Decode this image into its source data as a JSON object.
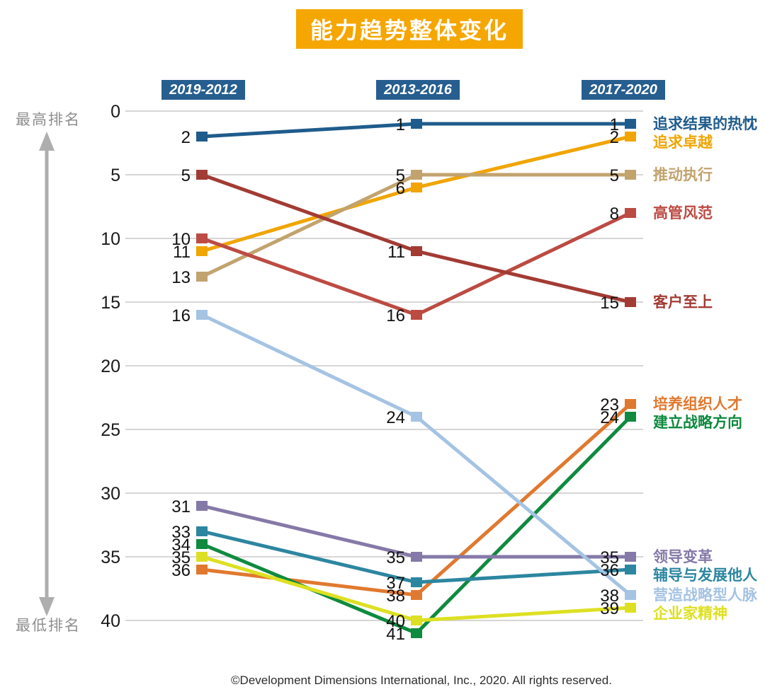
{
  "title": "能力趋势整体变化",
  "y_axis": {
    "top_label": "最高排名",
    "bottom_label": "最低排名"
  },
  "footer": "©Development Dimensions International, Inc., 2020. All rights reserved.",
  "colors": {
    "title_bg": "#F5A600",
    "title_text": "#FFFFFF",
    "header_bg": "#265E8F",
    "header_text": "#FFFFFF",
    "axis_side_label": "#8E8E8E",
    "grid": "#C9C9C9",
    "tick_text": "#1A1A1A",
    "value_text": "#111111",
    "arrow": "#AEAEAE"
  },
  "chart_data": {
    "type": "line",
    "title": "能力趋势整体变化",
    "categories": [
      "2019-2012",
      "2013-2016",
      "2017-2020"
    ],
    "y_axis_inverted": true,
    "ylim": [
      0,
      41
    ],
    "yticks": [
      0,
      5,
      10,
      15,
      20,
      25,
      30,
      35,
      40
    ],
    "grid": true,
    "legend_position": "right",
    "series": [
      {
        "name": "追求结果的热忱",
        "color": "#1F5C8C",
        "values": [
          2,
          1,
          1
        ]
      },
      {
        "name": "追求卓越",
        "color": "#F0A502",
        "values": [
          11,
          6,
          2
        ]
      },
      {
        "name": "推动执行",
        "color": "#C2A36E",
        "values": [
          13,
          5,
          5
        ]
      },
      {
        "name": "高管风范",
        "color": "#BC4B43",
        "values": [
          10,
          16,
          8
        ]
      },
      {
        "name": "客户至上",
        "color": "#A23B34",
        "values": [
          5,
          11,
          15
        ]
      },
      {
        "name": "培养组织人才",
        "color": "#E0792F",
        "values": [
          36,
          38,
          23
        ]
      },
      {
        "name": "建立战略方向",
        "color": "#0F8A3F",
        "values": [
          34,
          41,
          24
        ]
      },
      {
        "name": "领导变革",
        "color": "#8579A8",
        "values": [
          31,
          35,
          35
        ]
      },
      {
        "name": "辅导与发展他人",
        "color": "#2C86A0",
        "values": [
          33,
          37,
          36
        ]
      },
      {
        "name": "营造战略型人脉",
        "color": "#A5C3E3",
        "values": [
          16,
          24,
          38
        ]
      },
      {
        "name": "企业家精神",
        "color": "#DDE022",
        "values": [
          35,
          40,
          39
        ]
      }
    ]
  }
}
